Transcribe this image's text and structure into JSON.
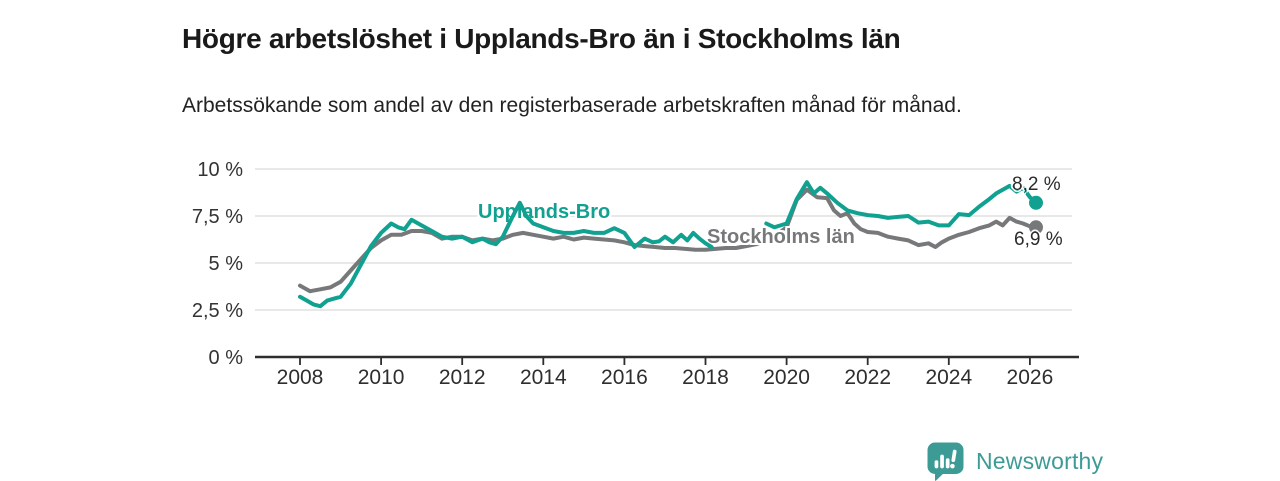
{
  "header": {
    "title": "Högre arbetslöshet i Upplands-Bro än i Stockholms län",
    "subtitle": "Arbetssökande som andel av den registerbaserade arbetskraften månad för månad."
  },
  "chart_data": {
    "type": "line",
    "x_axis": {
      "min": 2006.9,
      "max": 2027.05,
      "ticks": [
        2008,
        2010,
        2012,
        2014,
        2016,
        2018,
        2020,
        2022,
        2024,
        2026
      ],
      "tick_labels": [
        "2008",
        "2010",
        "2012",
        "2014",
        "2016",
        "2018",
        "2020",
        "2022",
        "2024",
        "2026"
      ]
    },
    "y_axis": {
      "min": 0,
      "max": 10,
      "unit": "%",
      "ticks": [
        0,
        2.5,
        5,
        7.5,
        10
      ],
      "tick_labels": [
        "0 %",
        "2,5 %",
        "5 %",
        "7,5 %",
        "10 %"
      ]
    },
    "grid": "horizontal",
    "legend": "inline-labels",
    "series": [
      {
        "id": "upplands-bro",
        "name": "Upplands-Bro",
        "color": "#10a191",
        "end_label": "8,2 %",
        "end_value": 8.2,
        "points": [
          [
            2008.0,
            3.2
          ],
          [
            2008.17,
            3.0
          ],
          [
            2008.33,
            2.8
          ],
          [
            2008.5,
            2.7
          ],
          [
            2008.67,
            3.0
          ],
          [
            2008.83,
            3.1
          ],
          [
            2009.0,
            3.2
          ],
          [
            2009.25,
            3.9
          ],
          [
            2009.5,
            4.9
          ],
          [
            2009.75,
            5.9
          ],
          [
            2010.0,
            6.6
          ],
          [
            2010.25,
            7.1
          ],
          [
            2010.42,
            6.9
          ],
          [
            2010.58,
            6.8
          ],
          [
            2010.75,
            7.3
          ],
          [
            2011.0,
            7.0
          ],
          [
            2011.25,
            6.7
          ],
          [
            2011.5,
            6.4
          ],
          [
            2011.75,
            6.3
          ],
          [
            2012.0,
            6.4
          ],
          [
            2012.25,
            6.1
          ],
          [
            2012.5,
            6.3
          ],
          [
            2012.67,
            6.1
          ],
          [
            2012.83,
            6.0
          ],
          [
            2013.0,
            6.4
          ],
          [
            2013.25,
            7.5
          ],
          [
            2013.42,
            8.2
          ],
          [
            2013.58,
            7.5
          ],
          [
            2013.75,
            7.1
          ],
          [
            2014.0,
            6.9
          ],
          [
            2014.25,
            6.7
          ],
          [
            2014.5,
            6.6
          ],
          [
            2014.75,
            6.6
          ],
          [
            2015.0,
            6.7
          ],
          [
            2015.25,
            6.6
          ],
          [
            2015.5,
            6.6
          ],
          [
            2015.75,
            6.85
          ],
          [
            2016.0,
            6.6
          ],
          [
            2016.25,
            5.85
          ],
          [
            2016.5,
            6.3
          ],
          [
            2016.7,
            6.1
          ],
          [
            2016.85,
            6.15
          ],
          [
            2017.0,
            6.4
          ],
          [
            2017.2,
            6.1
          ],
          [
            2017.4,
            6.5
          ],
          [
            2017.55,
            6.2
          ],
          [
            2017.7,
            6.6
          ],
          [
            2017.85,
            6.3
          ],
          [
            2018.0,
            6.05
          ],
          [
            2018.15,
            5.85
          ],
          [
            2018.35,
            5.9
          ],
          [
            2018.6,
            6.1
          ],
          [
            2018.8,
            6.4
          ],
          [
            2019.0,
            6.7
          ],
          [
            2019.25,
            7.0
          ],
          [
            2019.5,
            7.1
          ],
          [
            2019.7,
            6.9
          ],
          [
            2019.85,
            7.0
          ],
          [
            2020.0,
            7.1
          ],
          [
            2020.25,
            8.4
          ],
          [
            2020.5,
            9.3
          ],
          [
            2020.67,
            8.7
          ],
          [
            2020.83,
            9.0
          ],
          [
            2021.0,
            8.7
          ],
          [
            2021.25,
            8.2
          ],
          [
            2021.5,
            7.8
          ],
          [
            2021.75,
            7.65
          ],
          [
            2022.0,
            7.55
          ],
          [
            2022.25,
            7.5
          ],
          [
            2022.5,
            7.4
          ],
          [
            2022.75,
            7.45
          ],
          [
            2023.0,
            7.5
          ],
          [
            2023.25,
            7.15
          ],
          [
            2023.5,
            7.2
          ],
          [
            2023.75,
            7.0
          ],
          [
            2024.0,
            7.0
          ],
          [
            2024.25,
            7.6
          ],
          [
            2024.5,
            7.55
          ],
          [
            2024.75,
            8.0
          ],
          [
            2025.0,
            8.4
          ],
          [
            2025.17,
            8.7
          ],
          [
            2025.33,
            8.9
          ],
          [
            2025.5,
            9.1
          ],
          [
            2025.67,
            8.8
          ],
          [
            2025.83,
            9.0
          ],
          [
            2026.0,
            8.5
          ],
          [
            2026.15,
            8.2
          ]
        ]
      },
      {
        "id": "stockholms-lan",
        "name": "Stockholms län",
        "color": "#77787a",
        "end_label": "6,9 %",
        "end_value": 6.9,
        "points": [
          [
            2008.0,
            3.8
          ],
          [
            2008.25,
            3.5
          ],
          [
            2008.5,
            3.6
          ],
          [
            2008.75,
            3.7
          ],
          [
            2009.0,
            4.0
          ],
          [
            2009.25,
            4.6
          ],
          [
            2009.5,
            5.2
          ],
          [
            2009.75,
            5.8
          ],
          [
            2010.0,
            6.2
          ],
          [
            2010.25,
            6.5
          ],
          [
            2010.5,
            6.5
          ],
          [
            2010.75,
            6.7
          ],
          [
            2011.0,
            6.7
          ],
          [
            2011.25,
            6.6
          ],
          [
            2011.5,
            6.3
          ],
          [
            2011.75,
            6.4
          ],
          [
            2012.0,
            6.4
          ],
          [
            2012.25,
            6.2
          ],
          [
            2012.5,
            6.3
          ],
          [
            2012.75,
            6.2
          ],
          [
            2013.0,
            6.3
          ],
          [
            2013.25,
            6.5
          ],
          [
            2013.5,
            6.6
          ],
          [
            2013.75,
            6.5
          ],
          [
            2014.0,
            6.4
          ],
          [
            2014.25,
            6.3
          ],
          [
            2014.5,
            6.4
          ],
          [
            2014.75,
            6.25
          ],
          [
            2015.0,
            6.35
          ],
          [
            2015.25,
            6.3
          ],
          [
            2015.5,
            6.25
          ],
          [
            2015.75,
            6.2
          ],
          [
            2016.0,
            6.1
          ],
          [
            2016.25,
            5.95
          ],
          [
            2016.5,
            5.9
          ],
          [
            2016.75,
            5.85
          ],
          [
            2017.0,
            5.8
          ],
          [
            2017.25,
            5.8
          ],
          [
            2017.5,
            5.75
          ],
          [
            2017.75,
            5.7
          ],
          [
            2018.0,
            5.7
          ],
          [
            2018.25,
            5.75
          ],
          [
            2018.5,
            5.8
          ],
          [
            2018.75,
            5.8
          ],
          [
            2019.0,
            5.9
          ],
          [
            2019.25,
            6.0
          ],
          [
            2019.5,
            6.2
          ],
          [
            2019.75,
            6.5
          ],
          [
            2020.0,
            6.9
          ],
          [
            2020.25,
            8.35
          ],
          [
            2020.5,
            8.9
          ],
          [
            2020.75,
            8.5
          ],
          [
            2021.0,
            8.45
          ],
          [
            2021.17,
            7.8
          ],
          [
            2021.33,
            7.5
          ],
          [
            2021.5,
            7.65
          ],
          [
            2021.67,
            7.1
          ],
          [
            2021.83,
            6.8
          ],
          [
            2022.0,
            6.65
          ],
          [
            2022.25,
            6.6
          ],
          [
            2022.5,
            6.4
          ],
          [
            2022.75,
            6.3
          ],
          [
            2023.0,
            6.2
          ],
          [
            2023.25,
            5.95
          ],
          [
            2023.5,
            6.05
          ],
          [
            2023.67,
            5.85
          ],
          [
            2023.83,
            6.1
          ],
          [
            2024.0,
            6.3
          ],
          [
            2024.25,
            6.5
          ],
          [
            2024.5,
            6.65
          ],
          [
            2024.75,
            6.85
          ],
          [
            2025.0,
            7.0
          ],
          [
            2025.17,
            7.2
          ],
          [
            2025.33,
            7.0
          ],
          [
            2025.5,
            7.4
          ],
          [
            2025.67,
            7.2
          ],
          [
            2025.83,
            7.1
          ],
          [
            2026.0,
            6.95
          ],
          [
            2026.15,
            6.9
          ]
        ]
      }
    ]
  },
  "footer": {
    "brand": "Newsworthy",
    "brand_color": "#3d9b96",
    "logo_icon": "bar-chart-speech-bubble"
  }
}
